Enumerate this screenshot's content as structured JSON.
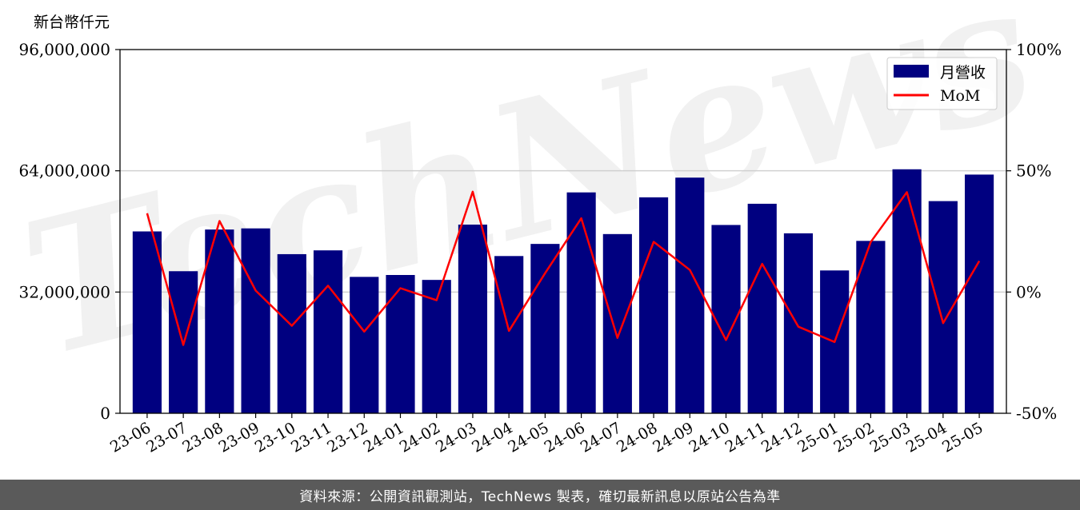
{
  "chart_data": {
    "type": "bar",
    "categories": [
      "23-06",
      "23-07",
      "23-08",
      "23-09",
      "23-10",
      "23-11",
      "23-12",
      "24-01",
      "24-02",
      "24-03",
      "24-04",
      "24-05",
      "24-06",
      "24-07",
      "24-08",
      "24-09",
      "24-10",
      "24-11",
      "24-12",
      "25-01",
      "25-02",
      "25-03",
      "25-04",
      "25-05"
    ],
    "series": [
      {
        "name": "月營收",
        "type": "bar",
        "axis": "left",
        "color": "#000080",
        "values": [
          48000000,
          37500000,
          48500000,
          48800000,
          42000000,
          43000000,
          36000000,
          36500000,
          35200000,
          49800000,
          41500000,
          44700000,
          58300000,
          47300000,
          57000000,
          62200000,
          49700000,
          55300000,
          47500000,
          37700000,
          45500000,
          64400000,
          56000000,
          63000000
        ]
      },
      {
        "name": "MoM",
        "type": "line",
        "axis": "right",
        "color": "#ff0000",
        "values": [
          32.5,
          -21.8,
          29.3,
          0.6,
          -13.9,
          2.6,
          -16.3,
          1.6,
          -3.4,
          41.4,
          -16.0,
          7.8,
          30.4,
          -18.9,
          20.7,
          9.1,
          -19.8,
          11.6,
          -14.3,
          -20.6,
          20.6,
          41.2,
          -12.8,
          12.8
        ]
      }
    ],
    "ylabel": "新台幣仟元",
    "y_ticks": [
      "0",
      "32,000,000",
      "64,000,000",
      "96,000,000"
    ],
    "ylim": [
      0,
      96000000
    ],
    "y2_ticks": [
      "-50%",
      "0%",
      "50%",
      "100%"
    ],
    "y2lim": [
      -50,
      100
    ],
    "grid": "horizontal",
    "legend": "top-right",
    "watermark": "TechNews"
  },
  "footer": {
    "text": "資料來源：公開資訊觀測站，TechNews 製表，確切最新訊息以原站公告為準"
  }
}
